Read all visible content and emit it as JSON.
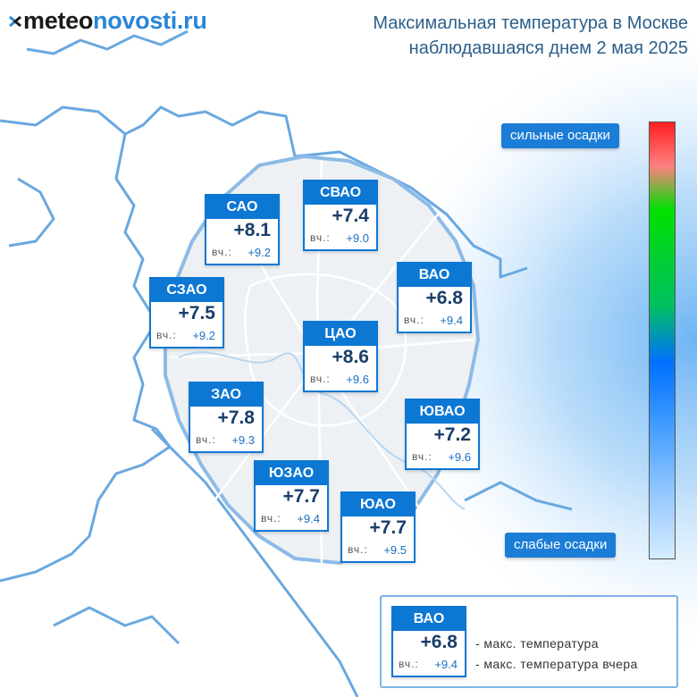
{
  "logo": {
    "part1": "meteo",
    "part2": "novosti.ru"
  },
  "title": {
    "line1": "Максимальная температура в Москве",
    "line2": "наблюдавшаяся днем 2 мая 2025"
  },
  "scale": {
    "top_label": "сильные осадки",
    "bottom_label": "слабые осадки"
  },
  "yesterday_prefix": "вч.:",
  "districts": [
    {
      "id": "sao",
      "name": "САО",
      "temp": "+8.1",
      "yesterday": "+9.2"
    },
    {
      "id": "svao",
      "name": "СВАО",
      "temp": "+7.4",
      "yesterday": "+9.0"
    },
    {
      "id": "szao",
      "name": "СЗАО",
      "temp": "+7.5",
      "yesterday": "+9.2"
    },
    {
      "id": "vao",
      "name": "ВАО",
      "temp": "+6.8",
      "yesterday": "+9.4"
    },
    {
      "id": "cao",
      "name": "ЦАО",
      "temp": "+8.6",
      "yesterday": "+9.6"
    },
    {
      "id": "zao",
      "name": "ЗАО",
      "temp": "+7.8",
      "yesterday": "+9.3"
    },
    {
      "id": "yuvao",
      "name": "ЮВАО",
      "temp": "+7.2",
      "yesterday": "+9.6"
    },
    {
      "id": "yuzao",
      "name": "ЮЗАО",
      "temp": "+7.7",
      "yesterday": "+9.4"
    },
    {
      "id": "yuao",
      "name": "ЮАО",
      "temp": "+7.7",
      "yesterday": "+9.5"
    }
  ],
  "legend": {
    "sample": {
      "name": "ВАО",
      "temp": "+6.8",
      "yesterday": "+9.4"
    },
    "max_temp_text": "- макс. температура",
    "max_temp_yesterday_text": "- макс. температура вчера"
  },
  "colors": {
    "accent": "#0d77d4",
    "label_bg": "#1b7dd6",
    "title": "#2c5f8a",
    "border_map": "#6aa8e0"
  }
}
